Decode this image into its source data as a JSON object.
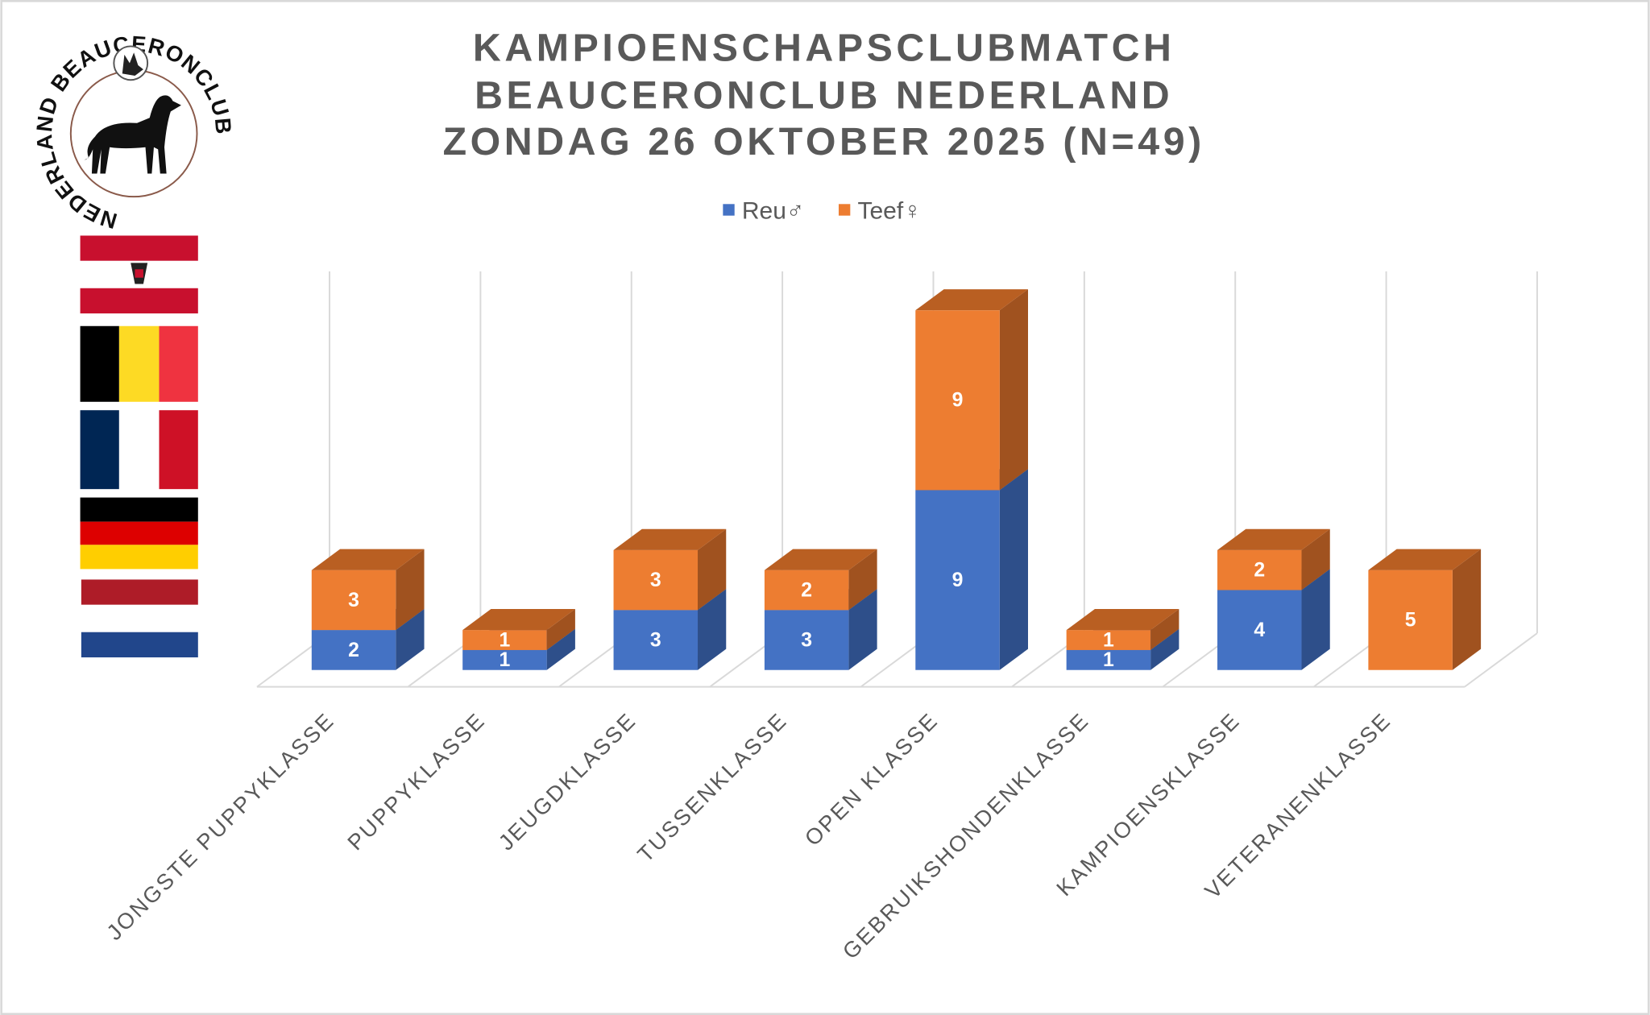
{
  "logo": {
    "text_top": "NEDERLAND BEAUCERONCLUB"
  },
  "flags": [
    "Austria",
    "Belgium",
    "France",
    "Germany",
    "Netherlands"
  ],
  "chart_data": {
    "type": "bar",
    "stacked": true,
    "style": "3d",
    "title": [
      "KAMPIOENSCHAPSCLUBMATCH",
      "BEAUCERONCLUB NEDERLAND",
      "ZONDAG 26 OKTOBER 2025 (N=49)"
    ],
    "categories": [
      "JONGSTE PUPPYKLASSE",
      "PUPPYKLASSE",
      "JEUGDKLASSE",
      "TUSSENKLASSE",
      "OPEN KLASSE",
      "GEBRUIKSHONDENKLASSE",
      "KAMPIOENSKLASSE",
      "VETERANENKLASSE"
    ],
    "series": [
      {
        "name": "Reu♂",
        "color": "#4472C4",
        "side": "#2E4F8A",
        "top": "#3A62A8",
        "values": [
          2,
          1,
          3,
          3,
          9,
          1,
          4,
          0
        ]
      },
      {
        "name": "Teef♀",
        "color": "#ED7D31",
        "side": "#A0521F",
        "top": "#B95F22",
        "values": [
          3,
          1,
          3,
          2,
          9,
          1,
          2,
          5
        ]
      }
    ],
    "xlabel": "",
    "ylabel": "",
    "ylim": [
      0,
      18
    ],
    "grid": true,
    "legend": "top-center"
  }
}
